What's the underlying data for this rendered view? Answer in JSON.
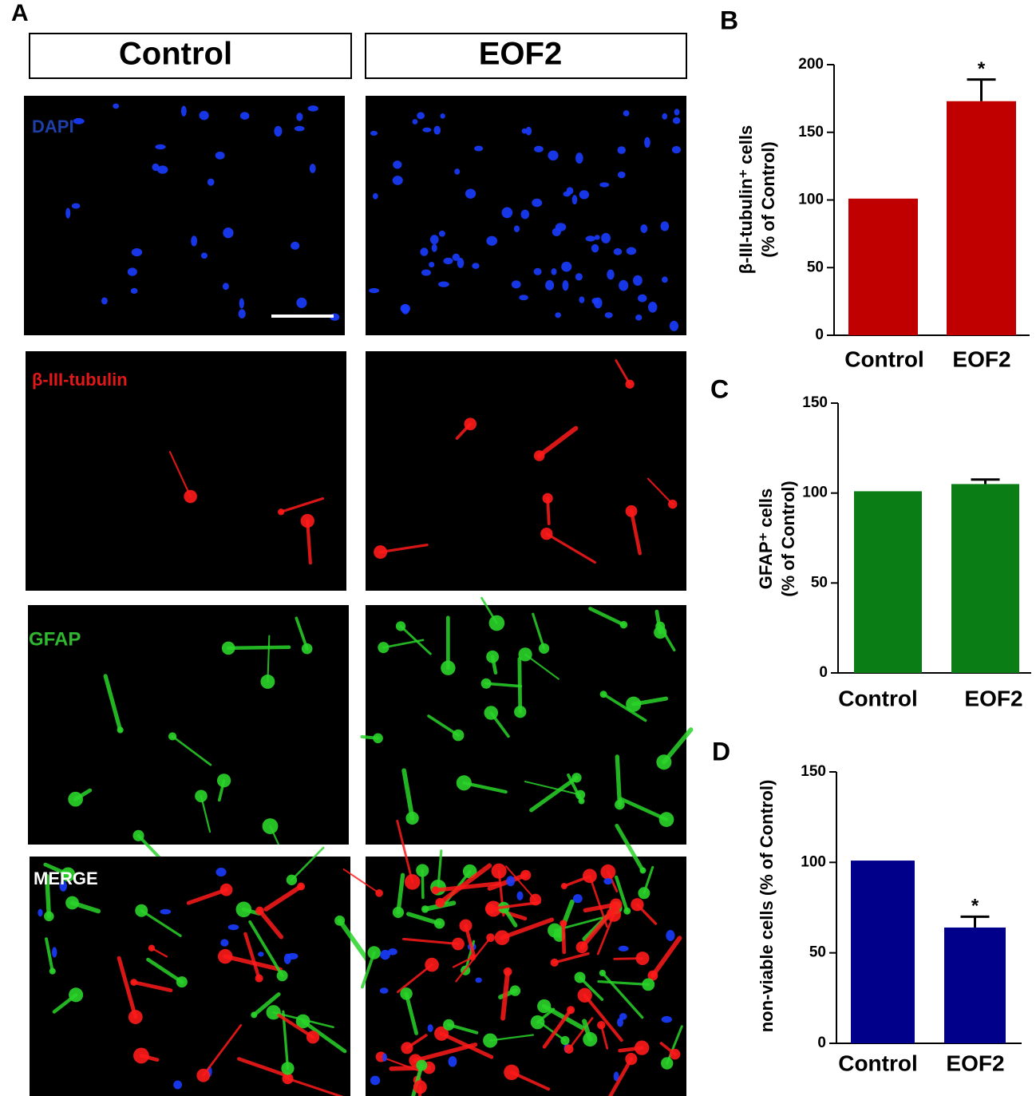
{
  "panel_a": {
    "label": "A",
    "columns": [
      "Control",
      "EOF2"
    ],
    "rows": [
      "DAPI",
      "β-III-tubulin",
      "GFAP",
      "MERGE"
    ]
  },
  "chart_data": [
    {
      "type": "bar",
      "panel": "B",
      "ylabel": [
        "β-III-tubulin⁺ cells",
        "(% of Control)"
      ],
      "categories": [
        "Control",
        "EOF2"
      ],
      "values": [
        101,
        173
      ],
      "errors": [
        null,
        16
      ],
      "annotations": [
        null,
        "*"
      ],
      "color": "#c00000",
      "ylim": [
        0,
        200
      ],
      "yticks": [
        0,
        50,
        100,
        150,
        200
      ]
    },
    {
      "type": "bar",
      "panel": "C",
      "ylabel": [
        "GFAP⁺ cells",
        "(% of Control)"
      ],
      "categories": [
        "Control",
        "EOF2"
      ],
      "values": [
        101,
        105
      ],
      "errors": [
        null,
        2.5
      ],
      "annotations": [
        null,
        null
      ],
      "color": "#0a7d14",
      "ylim": [
        0,
        150
      ],
      "yticks": [
        0,
        50,
        100,
        150
      ]
    },
    {
      "type": "bar",
      "panel": "D",
      "ylabel": [
        "non-viable cells (% of Control)"
      ],
      "categories": [
        "Control",
        "EOF2"
      ],
      "values": [
        101,
        64
      ],
      "errors": [
        null,
        6
      ],
      "annotations": [
        null,
        "*"
      ],
      "color": "#00008b",
      "ylim": [
        0,
        150
      ],
      "yticks": [
        0,
        50,
        100,
        150
      ]
    }
  ]
}
